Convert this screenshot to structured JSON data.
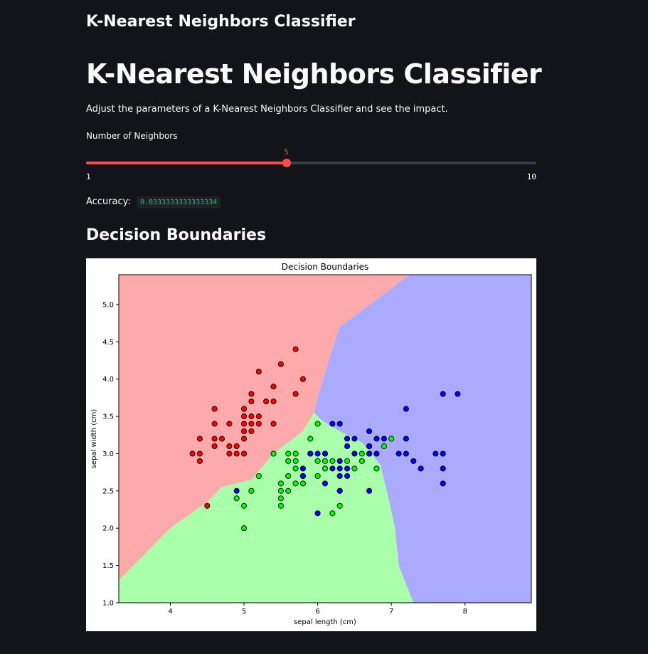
{
  "app": {
    "title": "K-Nearest Neighbors Classifier"
  },
  "main": {
    "heading": "K-Nearest Neighbors Classifier",
    "description": "Adjust the parameters of a K-Nearest Neighbors Classifier and see the impact.",
    "slider": {
      "label": "Number of Neighbors",
      "value": 5,
      "min": 1,
      "max": 10,
      "value_text": "5",
      "min_text": "1",
      "max_text": "10"
    },
    "accuracy": {
      "label": "Accuracy:",
      "value": "0.8333333333333334"
    },
    "section_title": "Decision Boundaries"
  },
  "colors": {
    "accent": "#ff4b4b",
    "background": "#131419",
    "region_red": "#ffaaaa",
    "region_green": "#aaffaa",
    "region_blue": "#aaaaff",
    "point_red": "#ff0000",
    "point_green": "#00ff00",
    "point_blue": "#0000ff"
  },
  "chart_data": {
    "type": "scatter",
    "title": "Decision Boundaries",
    "xlabel": "sepal length (cm)",
    "ylabel": "sepal width (cm)",
    "xlim": [
      3.3,
      8.9
    ],
    "ylim": [
      1.0,
      5.4
    ],
    "xticks": [
      "4",
      "5",
      "6",
      "7",
      "8"
    ],
    "xtick_values": [
      4,
      5,
      6,
      7,
      8
    ],
    "yticks": [
      "1.0",
      "1.5",
      "2.0",
      "2.5",
      "3.0",
      "3.5",
      "4.0",
      "4.5",
      "5.0"
    ],
    "ytick_values": [
      1.0,
      1.5,
      2.0,
      2.5,
      3.0,
      3.5,
      4.0,
      4.5,
      5.0
    ],
    "grid": false,
    "regions": [
      {
        "class": "red",
        "color": "#ffaaaa",
        "polygon": [
          [
            3.3,
            5.4
          ],
          [
            7.25,
            5.4
          ],
          [
            6.3,
            4.7
          ],
          [
            6.15,
            4.25
          ],
          [
            6.0,
            3.75
          ],
          [
            5.95,
            3.55
          ],
          [
            5.8,
            3.3
          ],
          [
            5.4,
            3.0
          ],
          [
            5.1,
            2.65
          ],
          [
            4.7,
            2.55
          ],
          [
            4.5,
            2.35
          ],
          [
            4.0,
            2.0
          ],
          [
            3.3,
            1.3
          ]
        ]
      },
      {
        "class": "green",
        "color": "#aaffaa",
        "polygon": [
          [
            3.3,
            1.3
          ],
          [
            4.0,
            2.0
          ],
          [
            4.5,
            2.35
          ],
          [
            4.7,
            2.55
          ],
          [
            5.1,
            2.65
          ],
          [
            5.4,
            3.0
          ],
          [
            5.8,
            3.3
          ],
          [
            5.95,
            3.55
          ],
          [
            6.05,
            3.45
          ],
          [
            6.3,
            3.3
          ],
          [
            6.6,
            3.15
          ],
          [
            6.85,
            2.85
          ],
          [
            6.95,
            2.45
          ],
          [
            7.05,
            2.0
          ],
          [
            7.1,
            1.5
          ],
          [
            7.3,
            1.0
          ],
          [
            3.3,
            1.0
          ]
        ]
      },
      {
        "class": "blue",
        "color": "#aaaaff",
        "polygon": [
          [
            7.25,
            5.4
          ],
          [
            8.9,
            5.4
          ],
          [
            8.9,
            1.0
          ],
          [
            7.3,
            1.0
          ],
          [
            7.1,
            1.5
          ],
          [
            7.05,
            2.0
          ],
          [
            6.95,
            2.45
          ],
          [
            6.85,
            2.85
          ],
          [
            6.6,
            3.15
          ],
          [
            6.3,
            3.3
          ],
          [
            6.05,
            3.45
          ],
          [
            5.95,
            3.55
          ],
          [
            6.0,
            3.75
          ],
          [
            6.15,
            4.25
          ],
          [
            6.3,
            4.7
          ]
        ]
      }
    ],
    "series": [
      {
        "class": "red",
        "color": "#ff0000",
        "points": [
          [
            5.8,
            4.0
          ],
          [
            5.7,
            4.4
          ],
          [
            5.7,
            3.8
          ],
          [
            5.5,
            4.2
          ],
          [
            5.4,
            3.9
          ],
          [
            5.4,
            3.7
          ],
          [
            5.4,
            3.4
          ],
          [
            5.3,
            3.7
          ],
          [
            5.2,
            4.1
          ],
          [
            5.2,
            3.5
          ],
          [
            5.2,
            3.4
          ],
          [
            5.1,
            3.8
          ],
          [
            5.1,
            3.7
          ],
          [
            5.1,
            3.5
          ],
          [
            5.1,
            3.4
          ],
          [
            5.1,
            3.3
          ],
          [
            5.0,
            3.6
          ],
          [
            5.0,
            3.5
          ],
          [
            5.0,
            3.4
          ],
          [
            5.0,
            3.3
          ],
          [
            5.0,
            3.2
          ],
          [
            5.0,
            3.0
          ],
          [
            4.9,
            3.1
          ],
          [
            4.9,
            3.0
          ],
          [
            4.8,
            3.4
          ],
          [
            4.8,
            3.1
          ],
          [
            4.8,
            3.0
          ],
          [
            4.7,
            3.2
          ],
          [
            4.6,
            3.6
          ],
          [
            4.6,
            3.4
          ],
          [
            4.6,
            3.2
          ],
          [
            4.6,
            3.1
          ],
          [
            4.4,
            3.2
          ],
          [
            4.4,
            3.0
          ],
          [
            4.4,
            2.9
          ],
          [
            4.3,
            3.0
          ],
          [
            4.5,
            2.3
          ]
        ]
      },
      {
        "class": "green",
        "color": "#00ff00",
        "points": [
          [
            7.0,
            3.2
          ],
          [
            6.9,
            3.1
          ],
          [
            6.8,
            2.8
          ],
          [
            6.7,
            3.1
          ],
          [
            6.7,
            3.0
          ],
          [
            6.6,
            3.0
          ],
          [
            6.6,
            2.9
          ],
          [
            6.5,
            2.8
          ],
          [
            6.4,
            2.9
          ],
          [
            6.4,
            3.2
          ],
          [
            6.3,
            2.5
          ],
          [
            6.3,
            2.3
          ],
          [
            6.2,
            2.9
          ],
          [
            6.2,
            2.2
          ],
          [
            6.1,
            3.0
          ],
          [
            6.1,
            2.9
          ],
          [
            6.1,
            2.8
          ],
          [
            6.0,
            3.4
          ],
          [
            6.0,
            2.9
          ],
          [
            6.0,
            2.7
          ],
          [
            5.9,
            3.2
          ],
          [
            5.9,
            3.0
          ],
          [
            5.8,
            2.7
          ],
          [
            5.8,
            2.6
          ],
          [
            5.7,
            3.0
          ],
          [
            5.7,
            2.9
          ],
          [
            5.7,
            2.8
          ],
          [
            5.7,
            2.6
          ],
          [
            5.6,
            3.0
          ],
          [
            5.6,
            2.9
          ],
          [
            5.6,
            2.7
          ],
          [
            5.6,
            2.5
          ],
          [
            5.5,
            2.6
          ],
          [
            5.5,
            2.5
          ],
          [
            5.5,
            2.4
          ],
          [
            5.5,
            2.3
          ],
          [
            5.4,
            3.0
          ],
          [
            5.2,
            2.7
          ],
          [
            5.1,
            2.5
          ],
          [
            5.0,
            2.3
          ],
          [
            5.0,
            2.0
          ],
          [
            4.9,
            2.4
          ]
        ]
      },
      {
        "class": "blue",
        "color": "#0000ff",
        "points": [
          [
            7.9,
            3.8
          ],
          [
            7.7,
            3.8
          ],
          [
            7.7,
            3.0
          ],
          [
            7.7,
            2.8
          ],
          [
            7.7,
            2.6
          ],
          [
            7.6,
            3.0
          ],
          [
            7.4,
            2.8
          ],
          [
            7.3,
            2.9
          ],
          [
            7.2,
            3.6
          ],
          [
            7.2,
            3.2
          ],
          [
            7.2,
            3.0
          ],
          [
            7.1,
            3.0
          ],
          [
            6.9,
            3.2
          ],
          [
            6.8,
            3.2
          ],
          [
            6.8,
            3.0
          ],
          [
            6.7,
            3.3
          ],
          [
            6.7,
            3.1
          ],
          [
            6.7,
            3.0
          ],
          [
            6.7,
            2.5
          ],
          [
            6.5,
            3.2
          ],
          [
            6.5,
            3.0
          ],
          [
            6.4,
            3.2
          ],
          [
            6.4,
            3.1
          ],
          [
            6.4,
            2.8
          ],
          [
            6.4,
            2.7
          ],
          [
            6.3,
            3.4
          ],
          [
            6.3,
            2.9
          ],
          [
            6.3,
            2.8
          ],
          [
            6.3,
            2.7
          ],
          [
            6.3,
            2.5
          ],
          [
            6.2,
            3.4
          ],
          [
            6.2,
            2.8
          ],
          [
            6.1,
            3.0
          ],
          [
            6.1,
            2.6
          ],
          [
            6.0,
            3.0
          ],
          [
            6.0,
            2.2
          ],
          [
            5.9,
            3.0
          ],
          [
            5.8,
            2.8
          ],
          [
            5.8,
            2.7
          ],
          [
            4.9,
            2.5
          ]
        ]
      }
    ]
  }
}
